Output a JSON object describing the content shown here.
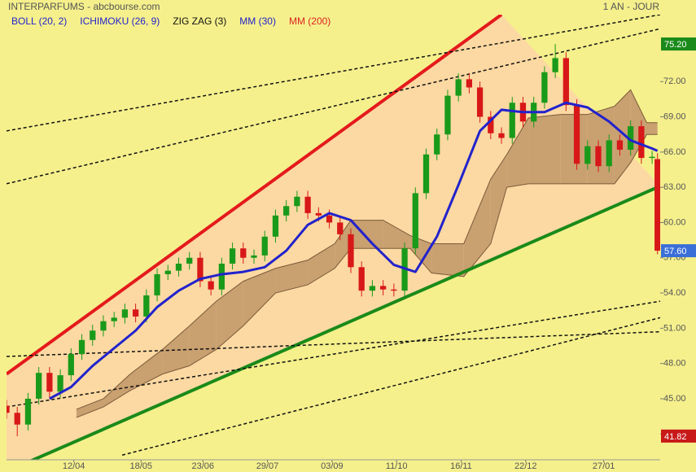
{
  "chart_data": {
    "type": "candlestick",
    "title": "INTERPARFUMS - abcbourse.com",
    "subtitle": "1 AN - JOUR",
    "legend": [
      {
        "name": "BOLL (20, 2)",
        "color": "#2222cc"
      },
      {
        "name": "ICHIMOKU (26, 9)",
        "color": "#2222cc"
      },
      {
        "name": "ZIG ZAG (3)",
        "color": "#111111"
      },
      {
        "name": "MM (30)",
        "color": "#2222cc"
      },
      {
        "name": "MM (200)",
        "color": "#dd2222"
      }
    ],
    "background": "#f5f08c",
    "channel_fill": "#fcd9a2",
    "up_color": "#1a9a1a",
    "down_color": "#d81818",
    "xlim": [
      0,
      243
    ],
    "ylim": [
      39.8,
      77.7
    ],
    "xticks": [
      {
        "value": 25,
        "label": "12/04"
      },
      {
        "value": 50,
        "label": "18/05"
      },
      {
        "value": 73,
        "label": "23/06"
      },
      {
        "value": 97,
        "label": "29/07"
      },
      {
        "value": 121,
        "label": "03/09"
      },
      {
        "value": 145,
        "label": "11/10"
      },
      {
        "value": 169,
        "label": "16/11"
      },
      {
        "value": 193,
        "label": "22/12"
      },
      {
        "value": 222,
        "label": "27/01"
      }
    ],
    "yticks": [
      {
        "value": 42,
        "label": "42.00"
      },
      {
        "value": 45,
        "label": "45.00"
      },
      {
        "value": 48,
        "label": "48.00"
      },
      {
        "value": 51,
        "label": "51.00"
      },
      {
        "value": 54,
        "label": "54.00"
      },
      {
        "value": 57,
        "label": "57.00"
      },
      {
        "value": 60,
        "label": "60.00"
      },
      {
        "value": 63,
        "label": "63.00"
      },
      {
        "value": 66,
        "label": "66.00"
      },
      {
        "value": 69,
        "label": "69.00"
      },
      {
        "value": 72,
        "label": "72.00"
      }
    ],
    "candles": {
      "x": [
        0,
        4,
        8,
        12,
        16,
        20,
        24,
        28,
        32,
        36,
        40,
        44,
        48,
        52,
        56,
        60,
        64,
        68,
        72,
        76,
        80,
        84,
        88,
        92,
        96,
        100,
        104,
        108,
        112,
        116,
        120,
        124,
        128,
        132,
        136,
        140,
        144,
        148,
        152,
        156,
        160,
        164,
        168,
        172,
        176,
        180,
        184,
        188,
        192,
        196,
        200,
        204,
        208,
        212,
        216,
        220,
        224,
        228,
        232,
        236,
        240,
        242
      ],
      "open": [
        44.4,
        43.8,
        42.8,
        45.0,
        47.2,
        45.6,
        47.0,
        48.8,
        50.0,
        50.8,
        51.6,
        51.9,
        52.6,
        52.0,
        53.8,
        55.6,
        55.9,
        56.5,
        57.0,
        55.0,
        54.3,
        56.5,
        57.8,
        57.0,
        57.2,
        58.8,
        60.6,
        61.4,
        62.2,
        60.8,
        60.6,
        60.0,
        59.0,
        56.2,
        54.2,
        54.6,
        54.3,
        54.2,
        57.8,
        62.5,
        65.8,
        67.5,
        70.8,
        72.2,
        71.5,
        69.0,
        67.6,
        67.2,
        70.2,
        68.6,
        70.2,
        72.8,
        74.0,
        70.0,
        65.0,
        66.5,
        64.8,
        67.0,
        66.2,
        68.2,
        65.5,
        65.4
      ],
      "high": [
        44.9,
        44.3,
        45.5,
        47.7,
        47.7,
        47.5,
        49.3,
        50.5,
        51.3,
        52.1,
        52.4,
        53.1,
        53.1,
        54.3,
        56.1,
        56.4,
        57.0,
        57.5,
        57.5,
        55.5,
        57.0,
        58.3,
        58.3,
        57.7,
        59.3,
        61.1,
        61.9,
        62.7,
        62.7,
        61.3,
        61.1,
        60.5,
        59.5,
        56.7,
        55.1,
        55.1,
        54.8,
        58.3,
        63.0,
        66.3,
        68.0,
        71.3,
        72.7,
        72.7,
        72.0,
        69.5,
        68.1,
        70.7,
        70.7,
        70.7,
        73.3,
        75.2,
        74.5,
        70.5,
        67.0,
        67.0,
        67.5,
        67.5,
        68.7,
        68.7,
        66.1,
        65.9
      ],
      "low": [
        43.3,
        41.8,
        42.3,
        44.5,
        45.1,
        45.1,
        46.5,
        48.3,
        49.5,
        50.3,
        51.1,
        51.4,
        51.5,
        51.5,
        53.3,
        55.1,
        55.4,
        56.0,
        54.5,
        53.8,
        53.8,
        56.0,
        56.5,
        56.5,
        56.7,
        58.3,
        60.1,
        60.9,
        60.3,
        60.1,
        59.5,
        58.5,
        55.7,
        53.7,
        53.7,
        53.8,
        53.7,
        53.7,
        57.3,
        62.0,
        65.3,
        67.0,
        70.3,
        71.0,
        68.5,
        67.1,
        66.7,
        66.7,
        68.1,
        68.1,
        69.7,
        72.3,
        69.5,
        64.5,
        64.5,
        64.3,
        64.3,
        65.7,
        65.7,
        65.0,
        65.0,
        57.3
      ],
      "close": [
        43.8,
        42.8,
        45.0,
        47.2,
        45.6,
        47.0,
        48.8,
        50.0,
        50.8,
        51.6,
        51.9,
        52.6,
        52.0,
        53.8,
        55.6,
        55.9,
        56.5,
        57.0,
        55.0,
        54.3,
        56.5,
        57.8,
        57.0,
        57.2,
        58.8,
        60.6,
        61.4,
        62.2,
        60.8,
        60.6,
        60.0,
        59.0,
        56.2,
        54.2,
        54.6,
        54.3,
        54.2,
        57.8,
        62.5,
        65.8,
        67.5,
        70.8,
        72.2,
        71.5,
        69.0,
        67.6,
        67.2,
        70.2,
        68.6,
        70.2,
        72.8,
        74.0,
        70.0,
        65.0,
        66.5,
        64.8,
        67.0,
        66.2,
        68.2,
        65.5,
        65.6,
        57.6
      ]
    },
    "moving_average": {
      "color": "#2222cc",
      "x": [
        16,
        24,
        32,
        40,
        48,
        56,
        64,
        72,
        80,
        88,
        96,
        104,
        112,
        120,
        128,
        136,
        144,
        152,
        160,
        168,
        176,
        184,
        192,
        200,
        208,
        216,
        224,
        232,
        240,
        242
      ],
      "values": [
        45.0,
        46.0,
        47.8,
        49.3,
        50.8,
        52.8,
        54.2,
        55.2,
        55.6,
        55.8,
        56.2,
        57.6,
        59.8,
        60.8,
        60.2,
        58.2,
        56.4,
        55.8,
        58.8,
        63.2,
        67.8,
        69.6,
        69.4,
        69.4,
        70.2,
        69.8,
        68.6,
        67.0,
        66.3,
        66.1
      ]
    },
    "cloud": {
      "color": "#c9a070",
      "edge": "#7a5a3a",
      "x": [
        26,
        36,
        46,
        58,
        68,
        78,
        88,
        100,
        112,
        122,
        128,
        140,
        150,
        158,
        170,
        180,
        186,
        194,
        206,
        216,
        226,
        232,
        238,
        242
      ],
      "span_a": [
        44.1,
        45.0,
        47.1,
        49.2,
        51.2,
        53.3,
        55.0,
        56.1,
        56.8,
        58.2,
        60.2,
        60.2,
        58.9,
        58.2,
        58.2,
        63.7,
        65.8,
        68.9,
        69.2,
        69.2,
        69.9,
        71.3,
        68.5,
        68.5
      ],
      "span_b": [
        43.4,
        44.3,
        45.7,
        47.1,
        47.8,
        49.2,
        51.2,
        54.0,
        54.7,
        56.1,
        57.8,
        57.8,
        57.8,
        55.7,
        55.4,
        58.2,
        63.0,
        63.3,
        63.3,
        63.3,
        63.3,
        65.1,
        67.5,
        67.5
      ]
    },
    "lines": [
      {
        "color": "#e41a1c",
        "width": 4,
        "style": "solid",
        "points": [
          [
            0,
            47.1
          ],
          [
            184,
            77.7
          ]
        ]
      },
      {
        "color": "#1a8a1a",
        "width": 4,
        "style": "solid",
        "points": [
          [
            0,
            38.8
          ],
          [
            243,
            63.1
          ]
        ]
      },
      {
        "color": "#111111",
        "width": 1.5,
        "style": "dotted",
        "points": [
          [
            0,
            67.8
          ],
          [
            243,
            77.7
          ]
        ]
      },
      {
        "color": "#111111",
        "width": 1.5,
        "style": "dotted",
        "points": [
          [
            0,
            63.3
          ],
          [
            243,
            76.5
          ]
        ]
      },
      {
        "color": "#111111",
        "width": 1.5,
        "style": "dotted",
        "points": [
          [
            0,
            48.6
          ],
          [
            243,
            50.7
          ]
        ]
      },
      {
        "color": "#111111",
        "width": 1.5,
        "style": "dotted",
        "points": [
          [
            0,
            44.3
          ],
          [
            243,
            53.3
          ]
        ]
      },
      {
        "color": "#111111",
        "width": 1.5,
        "style": "dotted",
        "points": [
          [
            43,
            40.2
          ],
          [
            243,
            51.9
          ]
        ]
      }
    ],
    "price_markers": [
      {
        "value": 75.2,
        "label": "75.20",
        "color": "#1a8a1a"
      },
      {
        "value": 57.6,
        "label": "57.60",
        "color": "#3a6fd8"
      },
      {
        "value": 41.82,
        "label": "41.82",
        "color": "#c81818"
      }
    ]
  }
}
